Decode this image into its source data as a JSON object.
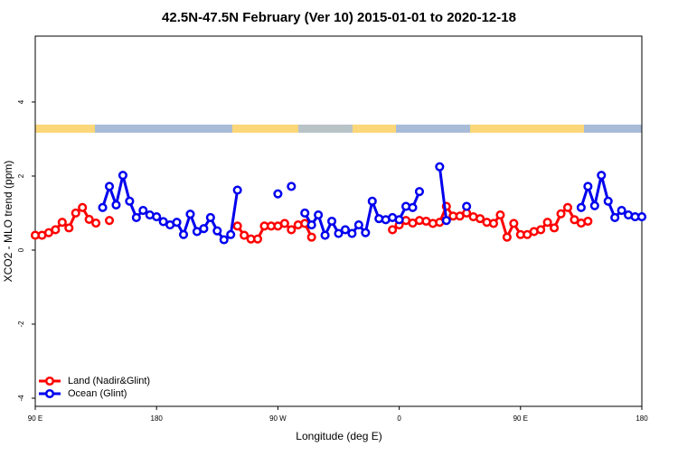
{
  "chart_data": {
    "type": "line",
    "title": "42.5N-47.5N February (Ver 10)   2015-01-01 to 2020-12-18",
    "x_label": "Longitude (deg E)",
    "y_label": "XCO2 - MLO trend (ppm)",
    "xlim": [
      90,
      540
    ],
    "ylim": [
      -4.22,
      5.78
    ],
    "xticks": [
      {
        "value": 90,
        "label": "90 E"
      },
      180,
      {
        "value": 270,
        "label": "90 W"
      },
      {
        "value": 360,
        "label": "0"
      },
      {
        "value": 450,
        "label": "90 E"
      },
      {
        "value": 540,
        "label": "180"
      }
    ],
    "yticks": [
      -4,
      -2,
      0,
      2,
      4
    ],
    "legend": "bottom-left",
    "x": [
      90,
      95,
      100,
      105,
      110,
      115,
      120,
      125,
      130,
      135,
      140,
      145,
      150,
      155,
      160,
      165,
      170,
      175,
      180,
      185,
      190,
      195,
      200,
      205,
      210,
      215,
      220,
      225,
      230,
      235,
      240,
      245,
      250,
      255,
      260,
      265,
      270,
      275,
      280,
      285,
      290,
      295,
      300,
      305,
      310,
      315,
      320,
      325,
      330,
      335,
      340,
      345,
      350,
      355,
      360,
      365,
      370,
      375,
      380,
      385,
      390,
      395,
      400,
      405,
      410,
      415,
      420,
      425,
      430,
      435,
      440,
      445,
      450,
      455,
      460,
      465,
      470,
      475,
      480,
      485,
      490,
      495,
      500,
      505,
      510,
      515,
      520,
      525,
      530,
      535,
      540
    ],
    "series": [
      {
        "name": "Land (Nadir&Glint)",
        "color": "#ff0000",
        "values": [
          0.4,
          0.4,
          0.47,
          0.55,
          0.75,
          0.6,
          1.0,
          1.15,
          0.83,
          0.73,
          null,
          0.8,
          null,
          null,
          null,
          null,
          null,
          null,
          null,
          null,
          null,
          null,
          null,
          null,
          null,
          null,
          null,
          null,
          null,
          null,
          0.65,
          0.4,
          0.3,
          0.3,
          0.65,
          0.65,
          0.65,
          0.72,
          0.55,
          0.68,
          0.72,
          0.35,
          null,
          null,
          null,
          null,
          null,
          null,
          null,
          null,
          null,
          null,
          null,
          0.55,
          0.68,
          0.8,
          0.73,
          0.8,
          0.78,
          0.72,
          0.75,
          1.18,
          0.92,
          0.92,
          1.0,
          0.9,
          0.85,
          0.75,
          0.72,
          0.95,
          0.35,
          0.72,
          0.42,
          0.42,
          0.5,
          0.55,
          0.75,
          0.6,
          0.98,
          1.15,
          0.82,
          0.73,
          0.78,
          null,
          null,
          null,
          null,
          null,
          null,
          null,
          null
        ]
      },
      {
        "name": "Ocean (Glint)",
        "color": "#0000ee",
        "values": [
          null,
          null,
          null,
          null,
          null,
          null,
          null,
          null,
          null,
          null,
          1.15,
          1.72,
          1.22,
          2.02,
          1.32,
          0.88,
          1.07,
          0.95,
          0.9,
          0.77,
          0.68,
          0.75,
          0.42,
          0.97,
          0.5,
          0.58,
          0.88,
          0.52,
          0.28,
          0.42,
          1.62,
          null,
          null,
          null,
          null,
          null,
          1.52,
          null,
          1.72,
          null,
          1.0,
          0.68,
          0.95,
          0.4,
          0.78,
          0.45,
          0.55,
          0.45,
          0.68,
          0.47,
          1.32,
          0.85,
          0.82,
          0.88,
          0.82,
          1.18,
          1.15,
          1.58,
          null,
          null,
          2.25,
          0.8,
          null,
          null,
          1.18,
          null,
          null,
          null,
          null,
          null,
          null,
          null,
          null,
          null,
          null,
          null,
          null,
          null,
          null,
          null,
          null,
          1.15,
          1.72,
          1.2,
          2.02,
          1.32,
          0.88,
          1.07,
          0.95,
          0.9,
          0.9
        ]
      }
    ]
  }
}
